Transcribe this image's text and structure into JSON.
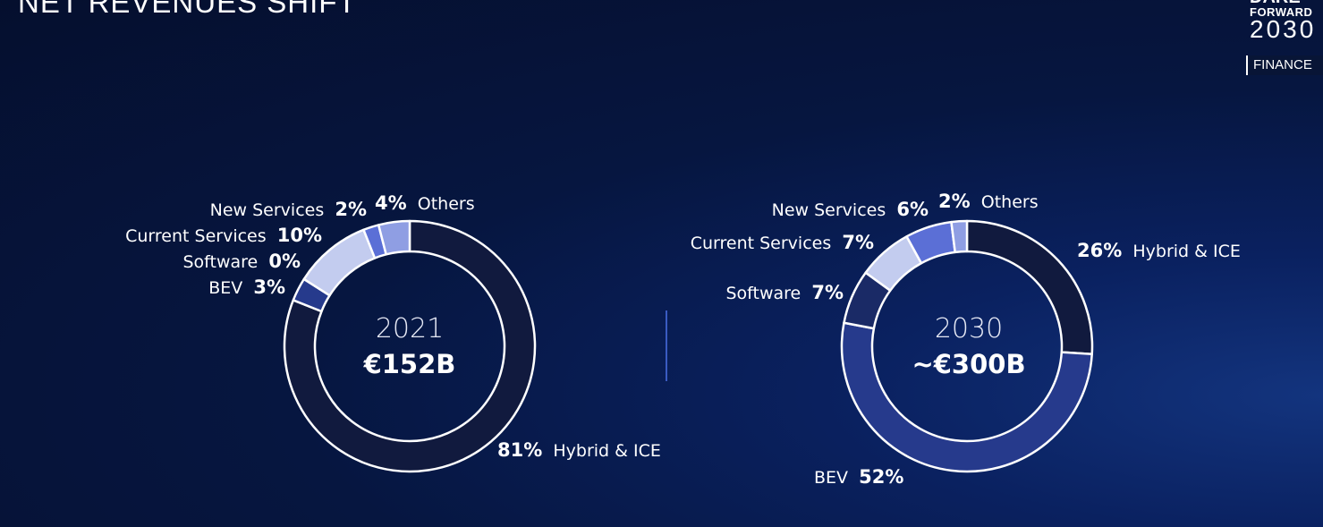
{
  "title": "NET REVENUES SHIFT",
  "brand": {
    "line1": "DARE",
    "line2": "FORWARD",
    "line3": "2030",
    "tag": "FINANCE"
  },
  "colors": {
    "hybrid_ice": "#111a3e",
    "bev": "#263a8c",
    "software": "#1a2a66",
    "current_services": "#c3ccef",
    "new_services": "#5b6fd6",
    "others": "#8f9ee3"
  },
  "chart_data": [
    {
      "type": "pie",
      "center_year": "2021",
      "center_value": "€152B",
      "categories": [
        "Hybrid & ICE",
        "BEV",
        "Software",
        "Current Services",
        "New Services",
        "Others"
      ],
      "values": [
        81,
        3,
        0,
        10,
        2,
        4
      ],
      "value_labels": [
        "81%",
        "3%",
        "0%",
        "10%",
        "2%",
        "4%"
      ]
    },
    {
      "type": "pie",
      "center_year": "2030",
      "center_value": "~€300B",
      "categories": [
        "Hybrid & ICE",
        "BEV",
        "Software",
        "Current Services",
        "New Services",
        "Others"
      ],
      "values": [
        26,
        52,
        7,
        7,
        6,
        2
      ],
      "value_labels": [
        "26%",
        "52%",
        "7%",
        "7%",
        "6%",
        "2%"
      ]
    }
  ]
}
